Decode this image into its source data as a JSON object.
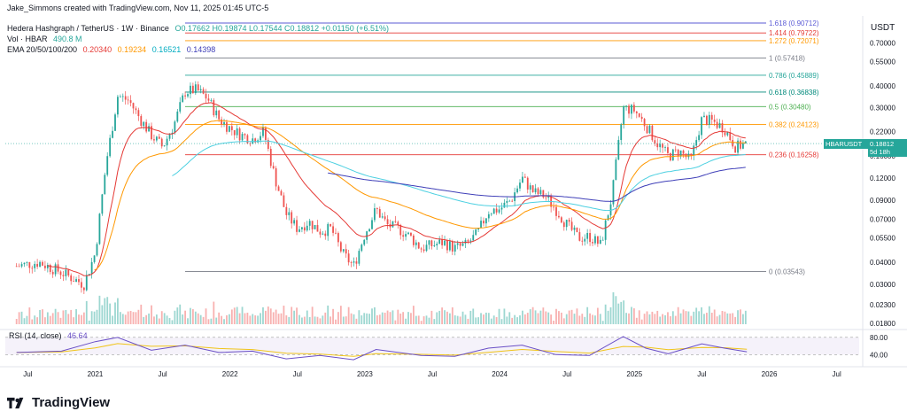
{
  "author_line": "Jake_Simmons created with TradingView.com, Nov 11, 2025 01:45 UTC-5",
  "header": {
    "symbol": "Hedera Hashgraph / TetherUS · 1W · Binance",
    "ohlc": "O0.17662 H0.19874 L0.17544 C0.18812 +0.01150 (+6.51%)",
    "vol_label": "Vol · HBAR",
    "vol_value": "490.8 M",
    "ema_label": "EMA 20/50/100/200",
    "ema_values": [
      "0.20340",
      "0.19234",
      "0.16521",
      "0.14398"
    ]
  },
  "colors": {
    "up": "#26a69a",
    "down": "#ef5350",
    "ema20": "#e53935",
    "ema50": "#ff9800",
    "ema100": "#4dd0e1",
    "ema200": "#3f3fb8",
    "rsi": "#6a4fc6",
    "rsi_ma": "#f0c419"
  },
  "price_axis": {
    "unit_label": "USDT",
    "ticks": [
      "0.70000",
      "0.55000",
      "0.40000",
      "0.30000",
      "0.22000",
      "0.16000",
      "0.12000",
      "0.09000",
      "0.07000",
      "0.05500",
      "0.04000",
      "0.03000",
      "0.02300",
      "0.01800"
    ]
  },
  "time_axis": {
    "ticks": [
      "Jul",
      "2021",
      "Jul",
      "2022",
      "Jul",
      "2023",
      "Jul",
      "2024",
      "Jul",
      "2025",
      "Jul",
      "2026",
      "Jul"
    ]
  },
  "price_badge": {
    "symbol": "HBARUSDT",
    "price": "0.18812",
    "countdown": "5d 18h"
  },
  "rsi": {
    "label": "RSI (14, close)",
    "value": "46.64",
    "ticks": [
      "80.00",
      "40.00"
    ]
  },
  "brand": "TradingView",
  "chart_data": [
    {
      "type": "candlestick",
      "title": "Hedera Hashgraph / TetherUS · 1W · Binance",
      "yscale": "log",
      "ylim": [
        0.017,
        0.95
      ],
      "xlim": [
        "2020-05",
        "2026-09"
      ],
      "fib_levels": [
        {
          "label": "1.618 (0.90712)",
          "value": 0.90712,
          "color": "#5b5bd6"
        },
        {
          "label": "1.414 (0.79722)",
          "value": 0.79722,
          "color": "#e53935"
        },
        {
          "label": "1.272 (0.72071)",
          "value": 0.72071,
          "color": "#ff9800"
        },
        {
          "label": "1 (0.57418)",
          "value": 0.57418,
          "color": "#787b86"
        },
        {
          "label": "0.786 (0.45889)",
          "value": 0.45889,
          "color": "#26a69a"
        },
        {
          "label": "0.618 (0.36838)",
          "value": 0.36838,
          "color": "#00897b"
        },
        {
          "label": "0.5 (0.30480)",
          "value": 0.3048,
          "color": "#4caf50"
        },
        {
          "label": "0.382 (0.24123)",
          "value": 0.24123,
          "color": "#ff9800"
        },
        {
          "label": "0.236 (0.16258)",
          "value": 0.16258,
          "color": "#e53935"
        },
        {
          "label": "0 (0.03543)",
          "value": 0.03543,
          "color": "#787b86"
        }
      ],
      "price_path": [
        [
          "2020-06",
          0.038
        ],
        [
          "2020-08",
          0.04
        ],
        [
          "2020-10",
          0.035
        ],
        [
          "2020-12",
          0.03
        ],
        [
          "2021-01",
          0.045
        ],
        [
          "2021-02",
          0.15
        ],
        [
          "2021-03",
          0.35
        ],
        [
          "2021-04",
          0.33
        ],
        [
          "2021-05",
          0.26
        ],
        [
          "2021-06",
          0.21
        ],
        [
          "2021-07",
          0.18
        ],
        [
          "2021-08",
          0.24
        ],
        [
          "2021-09",
          0.37
        ],
        [
          "2021-10",
          0.38
        ],
        [
          "2021-11",
          0.34
        ],
        [
          "2021-12",
          0.26
        ],
        [
          "2022-01",
          0.23
        ],
        [
          "2022-02",
          0.21
        ],
        [
          "2022-03",
          0.2
        ],
        [
          "2022-04",
          0.22
        ],
        [
          "2022-05",
          0.12
        ],
        [
          "2022-06",
          0.075
        ],
        [
          "2022-07",
          0.062
        ],
        [
          "2022-08",
          0.068
        ],
        [
          "2022-09",
          0.06
        ],
        [
          "2022-10",
          0.062
        ],
        [
          "2022-11",
          0.045
        ],
        [
          "2022-12",
          0.038
        ],
        [
          "2023-01",
          0.058
        ],
        [
          "2023-02",
          0.08
        ],
        [
          "2023-03",
          0.065
        ],
        [
          "2023-04",
          0.062
        ],
        [
          "2023-05",
          0.056
        ],
        [
          "2023-06",
          0.048
        ],
        [
          "2023-07",
          0.05
        ],
        [
          "2023-08",
          0.052
        ],
        [
          "2023-09",
          0.048
        ],
        [
          "2023-10",
          0.05
        ],
        [
          "2023-11",
          0.058
        ],
        [
          "2023-12",
          0.078
        ],
        [
          "2024-01",
          0.08
        ],
        [
          "2024-02",
          0.09
        ],
        [
          "2024-03",
          0.12
        ],
        [
          "2024-04",
          0.1
        ],
        [
          "2024-05",
          0.095
        ],
        [
          "2024-06",
          0.08
        ],
        [
          "2024-07",
          0.065
        ],
        [
          "2024-08",
          0.055
        ],
        [
          "2024-09",
          0.056
        ],
        [
          "2024-10",
          0.05
        ],
        [
          "2024-11",
          0.095
        ],
        [
          "2024-12",
          0.3
        ],
        [
          "2025-01",
          0.29
        ],
        [
          "2025-02",
          0.24
        ],
        [
          "2025-03",
          0.19
        ],
        [
          "2025-04",
          0.16
        ],
        [
          "2025-05",
          0.17
        ],
        [
          "2025-06",
          0.15
        ],
        [
          "2025-07",
          0.26
        ],
        [
          "2025-08",
          0.25
        ],
        [
          "2025-09",
          0.23
        ],
        [
          "2025-10",
          0.18
        ],
        [
          "2025-11",
          0.188
        ]
      ],
      "series": [
        {
          "name": "EMA 20",
          "value": 0.2034
        },
        {
          "name": "EMA 50",
          "value": 0.19234
        },
        {
          "name": "EMA 100",
          "value": 0.16521
        },
        {
          "name": "EMA 200",
          "value": 0.14398
        }
      ]
    },
    {
      "type": "line",
      "title": "RSI (14, close)",
      "ylim": [
        20,
        90
      ],
      "x": [
        "2020-06",
        "2020-10",
        "2021-01",
        "2021-03",
        "2021-06",
        "2021-09",
        "2021-12",
        "2022-03",
        "2022-06",
        "2022-09",
        "2022-12",
        "2023-02",
        "2023-06",
        "2023-09",
        "2023-12",
        "2024-03",
        "2024-06",
        "2024-09",
        "2024-12",
        "2025-02",
        "2025-04",
        "2025-07",
        "2025-09",
        "2025-11"
      ],
      "values": [
        45,
        48,
        70,
        80,
        50,
        62,
        45,
        48,
        30,
        38,
        28,
        52,
        38,
        36,
        55,
        62,
        40,
        38,
        82,
        55,
        42,
        65,
        55,
        46.64
      ]
    }
  ]
}
